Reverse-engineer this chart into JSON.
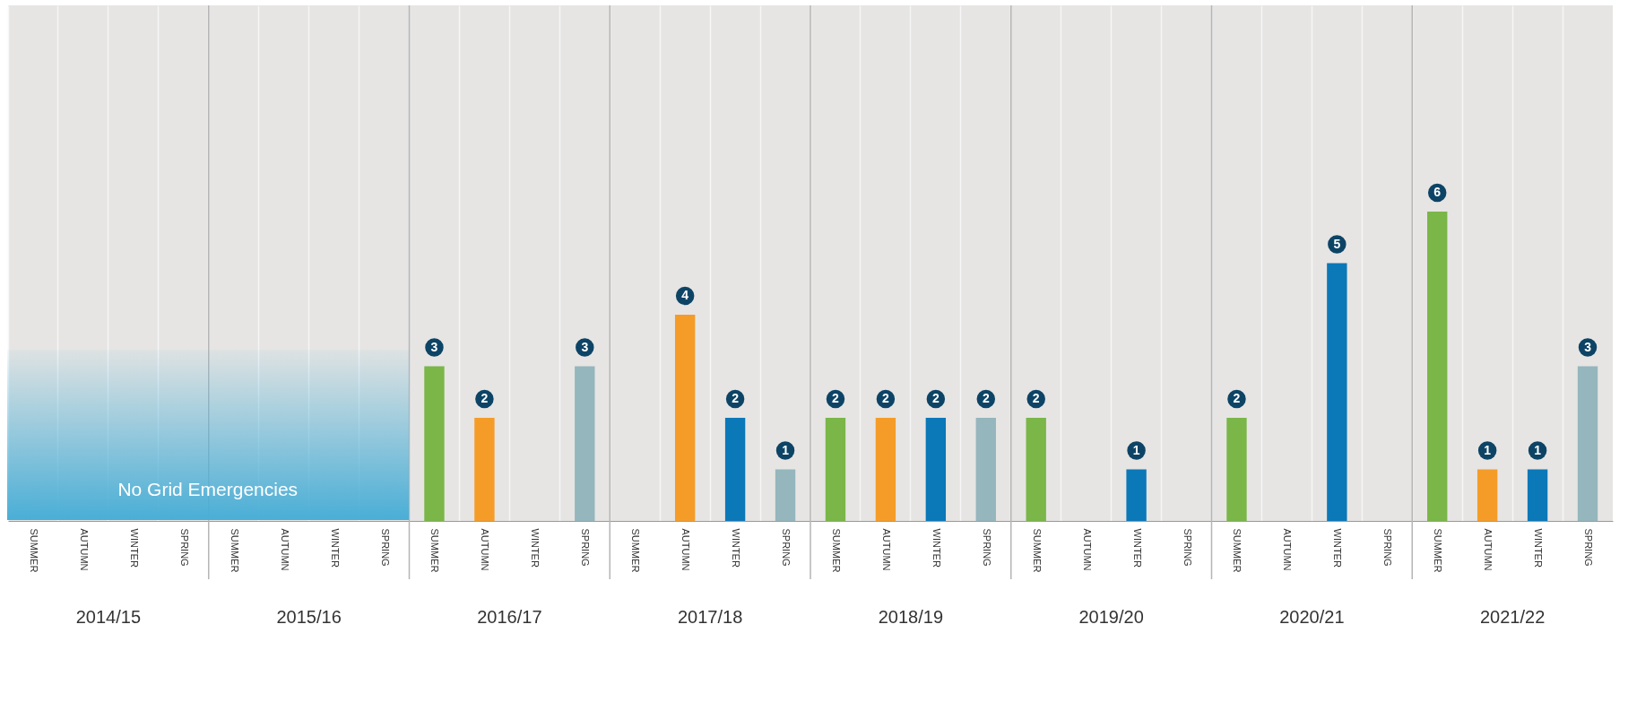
{
  "chart_data": {
    "type": "bar",
    "categories": [
      "SUMMER",
      "AUTUMN",
      "WINTER",
      "SPRING",
      "SUMMER",
      "AUTUMN",
      "WINTER",
      "SPRING",
      "SUMMER",
      "AUTUMN",
      "WINTER",
      "SPRING",
      "SUMMER",
      "AUTUMN",
      "WINTER",
      "SPRING",
      "SUMMER",
      "AUTUMN",
      "WINTER",
      "SPRING",
      "SUMMER",
      "AUTUMN",
      "WINTER",
      "SPRING",
      "SUMMER",
      "AUTUMN",
      "WINTER",
      "SPRING",
      "SUMMER",
      "AUTUMN",
      "WINTER",
      "SPRING"
    ],
    "values": [
      null,
      null,
      null,
      null,
      null,
      null,
      null,
      null,
      3,
      2,
      null,
      3,
      null,
      4,
      2,
      1,
      2,
      2,
      2,
      2,
      2,
      null,
      1,
      null,
      2,
      null,
      5,
      null,
      6,
      1,
      1,
      3
    ],
    "colors": [
      null,
      null,
      null,
      null,
      null,
      null,
      null,
      null,
      "#7ab648",
      "#f59c28",
      null,
      "#95b6bd",
      null,
      "#f59c28",
      "#0b78b8",
      "#95b6bd",
      "#7ab648",
      "#f59c28",
      "#0b78b8",
      "#95b6bd",
      "#7ab648",
      null,
      "#0b78b8",
      null,
      "#7ab648",
      null,
      "#0b78b8",
      null,
      "#7ab648",
      "#f59c28",
      "#0b78b8",
      "#95b6bd"
    ],
    "data_labels": true,
    "grid": "x",
    "annotations": [
      "No Grid Emergencies",
      "2014/15",
      "2015/16",
      "2016/17",
      "2017/18",
      "2018/19",
      "2019/20",
      "2020/21",
      "2021/22"
    ]
  }
}
